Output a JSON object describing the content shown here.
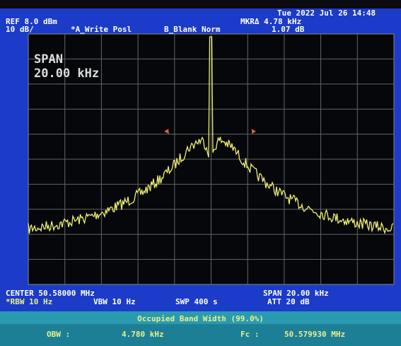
{
  "header": {
    "datetime": "Tue 2022 Jul 26 14:48",
    "ref": "REF 8.0 dBm",
    "scale": "10 dB/",
    "trace_a": "*A_Write Posl",
    "trace_b": "B_Blank Norm",
    "marker_freq": "MKRΔ 4.78 kHz",
    "marker_amp": "1.07 dB"
  },
  "screen": {
    "span_label": "SPAN",
    "span_value": "20.00 kHz"
  },
  "footer": {
    "center": "CENTER 50.58000 MHz",
    "span": "SPAN 20.00 kHz",
    "rbw": "*RBW 10 Hz",
    "vbw": "VBW 10 Hz",
    "swp": "SWP 400 s",
    "att": "ATT 20 dB"
  },
  "measurement": {
    "title": "Occupied Band Width (99.0%)",
    "obw_label": "OBW :",
    "obw_value": "4.780 kHz",
    "fc_label": "Fc :",
    "fc_value": "50.579930 MHz"
  }
}
